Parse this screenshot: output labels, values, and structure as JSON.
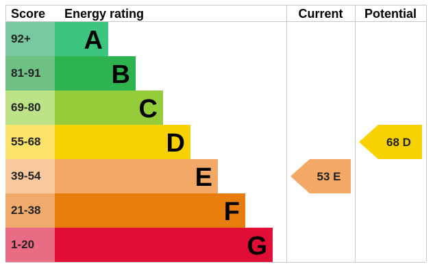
{
  "chart_data": {
    "type": "bar",
    "headers": {
      "score": "Score",
      "rating": "Energy rating",
      "current": "Current",
      "potential": "Potential"
    },
    "bands": [
      {
        "score": "92+",
        "letter": "A",
        "color": "#3cc57e",
        "score_bg": "#79c9a0"
      },
      {
        "score": "81-91",
        "letter": "B",
        "color": "#2db44f",
        "score_bg": "#6fc083"
      },
      {
        "score": "69-80",
        "letter": "C",
        "color": "#94cc3a",
        "score_bg": "#bde388"
      },
      {
        "score": "55-68",
        "letter": "D",
        "color": "#f8d100",
        "score_bg": "#fbe36a"
      },
      {
        "score": "39-54",
        "letter": "E",
        "color": "#f3a865",
        "score_bg": "#f8c99e"
      },
      {
        "score": "21-38",
        "letter": "F",
        "color": "#e77d0c",
        "score_bg": "#f0aa6b"
      },
      {
        "score": "1-20",
        "letter": "G",
        "color": "#e20d36",
        "score_bg": "#ea6b84"
      }
    ],
    "current": {
      "value": 53,
      "band": "E",
      "label": "53 E",
      "color": "#f3a865"
    },
    "potential": {
      "value": 68,
      "band": "D",
      "label": "68 D",
      "color": "#f8d100"
    }
  }
}
